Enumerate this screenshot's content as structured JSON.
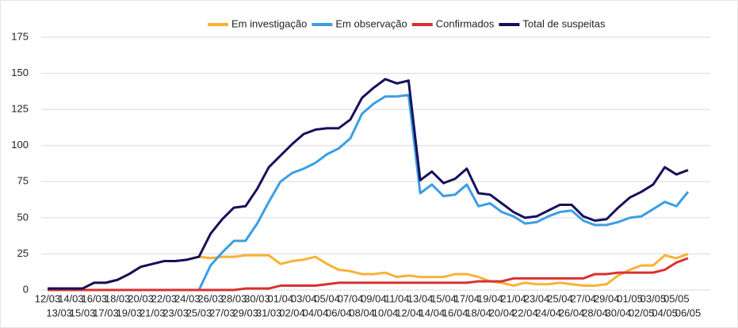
{
  "chart_data": {
    "type": "line",
    "categories": [
      "12/03",
      "13/03",
      "14/03",
      "15/03",
      "16/03",
      "17/03",
      "18/03",
      "19/03",
      "20/03",
      "21/03",
      "22/03",
      "23/03",
      "24/03",
      "25/03",
      "26/03",
      "27/03",
      "28/03",
      "29/03",
      "30/03",
      "31/03",
      "01/04",
      "02/04",
      "03/04",
      "04/04",
      "05/04",
      "06/04",
      "07/04",
      "08/04",
      "09/04",
      "10/04",
      "11/04",
      "12/04",
      "13/04",
      "14/04",
      "15/04",
      "16/04",
      "17/04",
      "18/04",
      "19/04",
      "20/04",
      "21/04",
      "22/04",
      "23/04",
      "24/04",
      "25/04",
      "26/04",
      "27/04",
      "28/04",
      "29/04",
      "30/04",
      "01/05",
      "02/05",
      "03/05",
      "04/05",
      "05/05",
      "06/05"
    ],
    "series": [
      {
        "name": "Em investigação",
        "color": "#f9b233",
        "values": [
          1,
          1,
          1,
          1,
          5,
          5,
          7,
          11,
          16,
          18,
          20,
          20,
          21,
          23,
          22,
          23,
          23,
          24,
          24,
          24,
          18,
          20,
          21,
          23,
          18,
          14,
          13,
          11,
          11,
          12,
          9,
          10,
          9,
          9,
          9,
          11,
          11,
          9,
          6,
          5,
          3,
          5,
          4,
          4,
          5,
          4,
          3,
          3,
          4,
          10,
          14,
          17,
          17,
          24,
          22,
          25
        ]
      },
      {
        "name": "Em observação",
        "color": "#3a9ee4",
        "values": [
          0,
          0,
          0,
          0,
          0,
          0,
          0,
          0,
          0,
          0,
          0,
          0,
          0,
          0,
          17,
          26,
          34,
          34,
          46,
          61,
          75,
          81,
          84,
          88,
          94,
          98,
          105,
          122,
          129,
          134,
          134,
          135,
          67,
          73,
          65,
          66,
          73,
          58,
          60,
          54,
          51,
          46,
          47,
          51,
          54,
          55,
          48,
          45,
          45,
          47,
          50,
          51,
          56,
          61,
          58,
          68
        ]
      },
      {
        "name": "Confirmados",
        "color": "#d9312f",
        "values": [
          0,
          0,
          0,
          0,
          0,
          0,
          0,
          0,
          0,
          0,
          0,
          0,
          0,
          0,
          0,
          0,
          0,
          1,
          1,
          1,
          3,
          3,
          3,
          3,
          4,
          5,
          5,
          5,
          5,
          5,
          5,
          5,
          5,
          5,
          5,
          5,
          5,
          6,
          6,
          6,
          8,
          8,
          8,
          8,
          8,
          8,
          8,
          11,
          11,
          12,
          12,
          12,
          12,
          14,
          19,
          22
        ]
      },
      {
        "name": "Total de suspeitas",
        "color": "#15105c",
        "values": [
          1,
          1,
          1,
          1,
          5,
          5,
          7,
          11,
          16,
          18,
          20,
          20,
          21,
          23,
          39,
          49,
          57,
          58,
          70,
          85,
          93,
          101,
          108,
          111,
          112,
          112,
          118,
          133,
          140,
          146,
          143,
          145,
          76,
          82,
          74,
          77,
          84,
          67,
          66,
          60,
          54,
          50,
          51,
          55,
          59,
          59,
          51,
          48,
          49,
          57,
          64,
          68,
          73,
          85,
          80,
          83
        ]
      }
    ],
    "ylim": [
      0,
      175
    ],
    "yticks": [
      0,
      25,
      50,
      75,
      100,
      125,
      150,
      175
    ],
    "grid": true,
    "legend": "top"
  }
}
